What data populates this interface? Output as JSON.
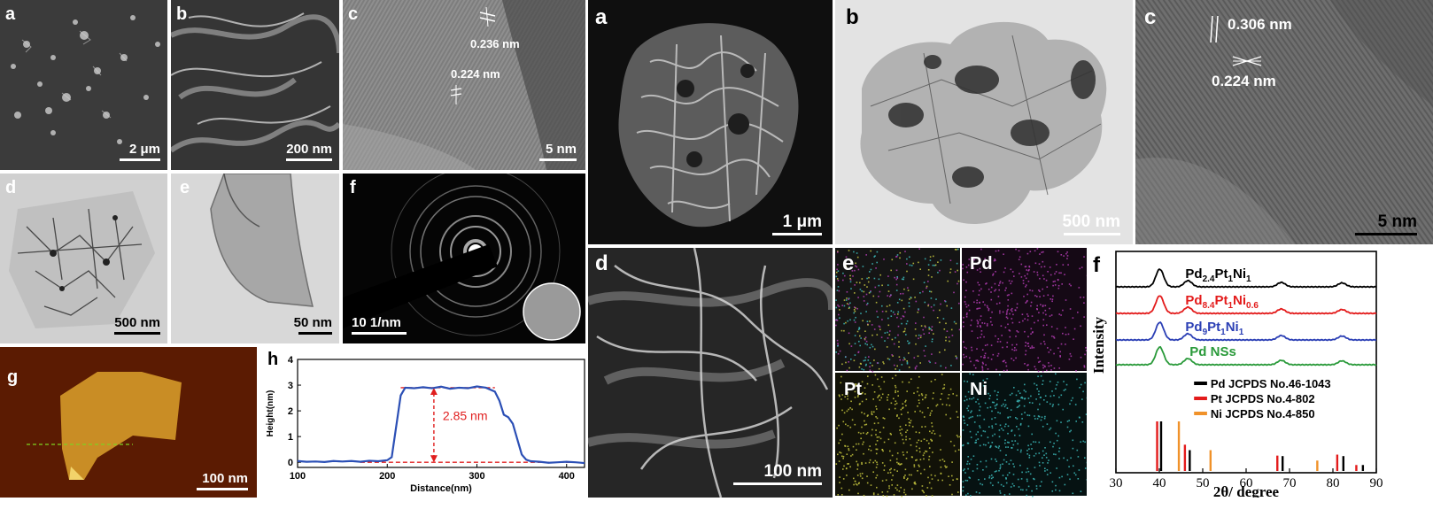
{
  "left_figure": {
    "panels": {
      "a": {
        "label": "a",
        "scale": "2 μm"
      },
      "b": {
        "label": "b",
        "scale": "200 nm"
      },
      "c": {
        "label": "c",
        "scale": "5 nm",
        "spacings": [
          "0.236 nm",
          "0.224 nm"
        ]
      },
      "d": {
        "label": "d",
        "scale": "500 nm"
      },
      "e": {
        "label": "e",
        "scale": "50 nm"
      },
      "f": {
        "label": "f",
        "scale": "10 1/nm"
      },
      "g": {
        "label": "g",
        "scale": "100 nm"
      },
      "h": {
        "label": "h"
      }
    }
  },
  "right_figure": {
    "panels": {
      "a": {
        "label": "a",
        "scale": "1 μm"
      },
      "b": {
        "label": "b",
        "scale": "500 nm"
      },
      "c": {
        "label": "c",
        "scale": "5 nm",
        "spacings": [
          "0.306 nm",
          "0.224 nm"
        ]
      },
      "d": {
        "label": "d",
        "scale": "100 nm"
      },
      "e": {
        "label": "e",
        "maps": [
          "Pd",
          "Pt",
          "Ni"
        ]
      },
      "f": {
        "label": "f"
      }
    }
  },
  "chart_data": [
    {
      "type": "line",
      "panel": "h",
      "xlabel": "Distance(nm)",
      "ylabel": "Height(nm)",
      "xlim": [
        100,
        420
      ],
      "ylim": [
        -0.2,
        4
      ],
      "xticks": [
        100,
        200,
        300,
        400
      ],
      "yticks": [
        0,
        1,
        2,
        3,
        4
      ],
      "annotation": "2.85 nm",
      "reference_levels": [
        0,
        2.9
      ],
      "colors": {
        "line": "#2b4fb5",
        "annotation": "#e01e1e"
      },
      "series": [
        {
          "x": [
            100,
            110,
            120,
            130,
            140,
            150,
            160,
            170,
            180,
            190,
            200,
            205,
            210,
            215,
            220,
            230,
            240,
            250,
            260,
            270,
            280,
            290,
            300,
            310,
            320,
            325,
            330,
            335,
            340,
            345,
            350,
            355,
            360,
            370,
            380,
            390,
            400,
            410,
            420
          ],
          "values": [
            0.05,
            0.02,
            0.03,
            0.01,
            0.05,
            0.03,
            0.05,
            0.02,
            0.06,
            0.04,
            0.08,
            0.2,
            1.4,
            2.6,
            2.9,
            2.88,
            2.92,
            2.88,
            2.94,
            2.86,
            2.9,
            2.88,
            2.95,
            2.9,
            2.75,
            2.4,
            1.85,
            1.75,
            1.5,
            0.9,
            0.3,
            0.1,
            0.04,
            0.02,
            -0.02,
            0.0,
            0.02,
            0.0,
            -0.03
          ]
        }
      ]
    },
    {
      "type": "line",
      "panel": "f",
      "xlabel": "2θ/ degree",
      "ylabel": "Intensity",
      "xlim": [
        30,
        90
      ],
      "xticks": [
        30,
        40,
        50,
        60,
        70,
        80,
        90
      ],
      "series": [
        {
          "name": "Pd2.4Pt1Ni1",
          "label_parts": [
            [
              "Pd",
              ""
            ],
            [
              "2.4",
              "sub"
            ],
            [
              "Pt",
              ""
            ],
            [
              "1",
              "sub"
            ],
            [
              "Ni",
              ""
            ],
            [
              "1",
              "sub"
            ]
          ],
          "color": "#000000",
          "peaks": [
            40.1,
            46.6,
            68.1,
            82.1
          ],
          "peak_heights": [
            1.0,
            0.35,
            0.25,
            0.22
          ]
        },
        {
          "name": "Pd8.4Pt1Ni0.6",
          "label_parts": [
            [
              "Pd",
              ""
            ],
            [
              "8.4",
              "sub"
            ],
            [
              "Pt",
              ""
            ],
            [
              "1",
              "sub"
            ],
            [
              "Ni",
              ""
            ],
            [
              "0.6",
              "sub"
            ]
          ],
          "color": "#e31b1b",
          "peaks": [
            40.1,
            46.6,
            68.1,
            82.1
          ],
          "peak_heights": [
            1.0,
            0.35,
            0.25,
            0.22
          ]
        },
        {
          "name": "Pd9Pt1Ni1",
          "label_parts": [
            [
              "Pd",
              ""
            ],
            [
              "9",
              "sub"
            ],
            [
              "Pt",
              ""
            ],
            [
              "1",
              "sub"
            ],
            [
              "Ni",
              ""
            ],
            [
              "1",
              "sub"
            ]
          ],
          "color": "#2b3fb5",
          "peaks": [
            40.1,
            46.6,
            68.1,
            82.1
          ],
          "peak_heights": [
            1.0,
            0.35,
            0.25,
            0.22
          ]
        },
        {
          "name": "Pd NSs",
          "label_parts": [
            [
              "Pd NSs",
              ""
            ]
          ],
          "color": "#2a9a3a",
          "peaks": [
            40.1,
            46.6,
            68.1,
            82.1
          ],
          "peak_heights": [
            1.0,
            0.35,
            0.25,
            0.22
          ]
        }
      ],
      "references": [
        {
          "name": "Pd  JCPDS No.46-1043",
          "color": "#000000",
          "peaks": [
            40.1,
            46.7,
            68.1,
            82.1,
            86.6
          ],
          "heights": [
            1.0,
            0.42,
            0.3,
            0.3,
            0.12
          ]
        },
        {
          "name": "Pt  JCPDS No.4-802",
          "color": "#e31b1b",
          "peaks": [
            39.8,
            46.2,
            67.5,
            81.3,
            85.7
          ],
          "heights": [
            1.0,
            0.53,
            0.31,
            0.33,
            0.12
          ]
        },
        {
          "name": "Ni  JCPDS No.4-850",
          "color": "#f0922a",
          "peaks": [
            44.5,
            51.8,
            76.4
          ],
          "heights": [
            1.0,
            0.42,
            0.21
          ]
        }
      ]
    }
  ]
}
